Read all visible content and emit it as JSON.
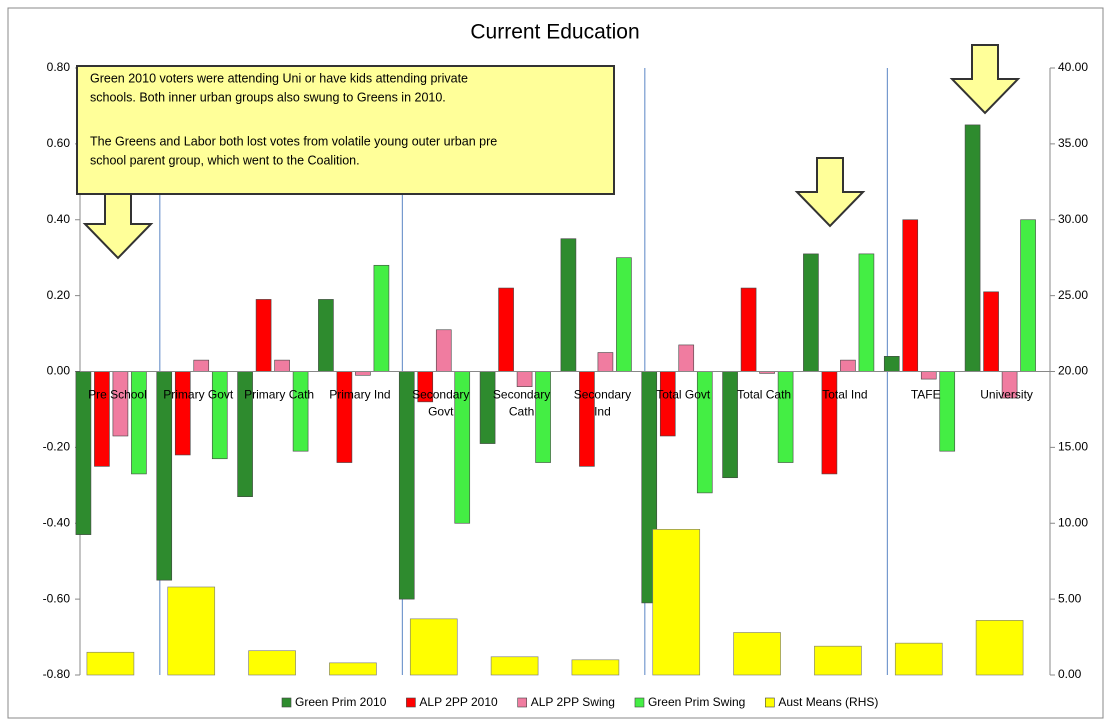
{
  "chart_data": {
    "type": "bar",
    "title": "Current Education",
    "categories": [
      "Pre School",
      "Primary Govt",
      "Primary Cath",
      "Primary Ind",
      "Secondary Govt",
      "Secondary Cath",
      "Secondary Ind",
      "Total Govt",
      "Total Cath",
      "Total Ind",
      "TAFE",
      "University"
    ],
    "series": [
      {
        "name": "Green Prim 2010",
        "color": "#2e8b2e",
        "values": [
          -0.43,
          -0.55,
          -0.33,
          0.19,
          -0.6,
          -0.19,
          0.35,
          -0.61,
          -0.28,
          0.31,
          0.04,
          0.65
        ]
      },
      {
        "name": "ALP 2PP 2010",
        "color": "#ff0000",
        "values": [
          -0.25,
          -0.22,
          0.19,
          -0.24,
          -0.08,
          0.22,
          -0.25,
          -0.17,
          0.22,
          -0.27,
          0.4,
          0.21
        ]
      },
      {
        "name": "ALP 2PP Swing",
        "color": "#f07ca0",
        "values": [
          -0.17,
          0.03,
          0.03,
          -0.01,
          0.11,
          -0.04,
          0.05,
          0.07,
          -0.005,
          0.03,
          -0.02,
          -0.07
        ]
      },
      {
        "name": "Green Prim Swing",
        "color": "#44ee44",
        "values": [
          -0.27,
          -0.23,
          -0.21,
          0.28,
          -0.4,
          -0.24,
          0.3,
          -0.32,
          -0.24,
          0.31,
          -0.21,
          0.4
        ]
      },
      {
        "name": "Aust Means (RHS)",
        "color": "#ffff00",
        "axis": "y2",
        "values": [
          1.5,
          5.8,
          1.6,
          0.8,
          3.7,
          1.2,
          1.0,
          9.6,
          2.8,
          1.9,
          2.1,
          3.6
        ]
      }
    ],
    "ylim": [
      -0.8,
      0.8
    ],
    "yticks": [
      {
        "value": 0.8,
        "label": "0.80"
      },
      {
        "value": 0.6,
        "label": "0.60"
      },
      {
        "value": 0.4,
        "label": "0.40"
      },
      {
        "value": 0.2,
        "label": "0.20"
      },
      {
        "value": 0,
        "label": "0.00"
      },
      {
        "value": -0.2,
        "label": "-0.20"
      },
      {
        "value": -0.4,
        "label": "-0.40"
      },
      {
        "value": -0.6,
        "label": "-0.60"
      },
      {
        "value": -0.8,
        "label": "-0.80"
      }
    ],
    "y2lim": [
      0,
      40
    ],
    "y2ticks": [
      {
        "value": 40,
        "label": "40.00"
      },
      {
        "value": 35,
        "label": "35.00"
      },
      {
        "value": 30,
        "label": "30.00"
      },
      {
        "value": 25,
        "label": "25.00"
      },
      {
        "value": 20,
        "label": "20.00"
      },
      {
        "value": 15,
        "label": "15.00"
      },
      {
        "value": 10,
        "label": "10.00"
      },
      {
        "value": 5,
        "label": "5.00"
      },
      {
        "value": 0,
        "label": "0.00"
      }
    ],
    "annotation": [
      "Green  2010 voters were attending Uni or have kids attending private",
      "schools.  Both inner urban groups also swung to Greens in 2010.",
      "The Greens and Labor both lost votes from volatile young outer urban pre",
      "school parent group, which went to the Coalition."
    ],
    "legend": "bottom"
  }
}
